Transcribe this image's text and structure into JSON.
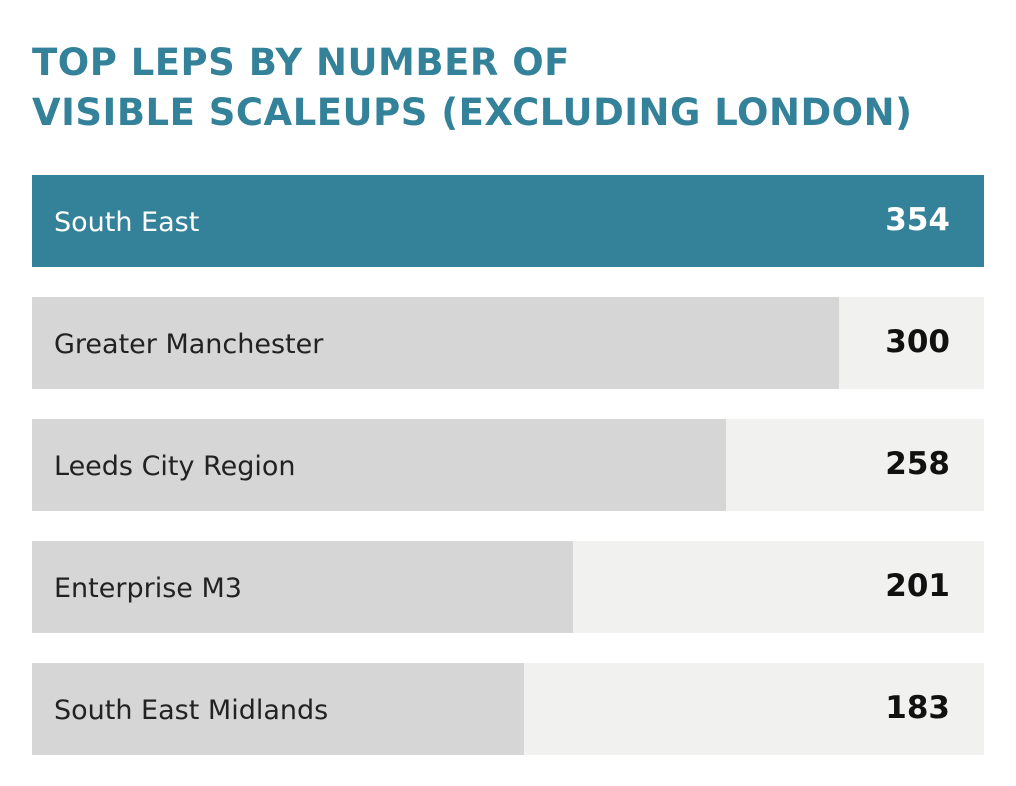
{
  "chart_data": {
    "type": "bar",
    "orientation": "horizontal",
    "title_lines": [
      "TOP LEPS BY NUMBER OF",
      "VISIBLE SCALEUPS (EXCLUDING LONDON)"
    ],
    "categories": [
      "South East",
      "Greater Manchester",
      "Leeds City Region",
      "Enterprise M3",
      "South East Midlands"
    ],
    "values": [
      354,
      300,
      258,
      201,
      183
    ],
    "grid": false,
    "legend": "none",
    "colors": {
      "title": "#34819a",
      "highlight_bar": "#34819a",
      "bar": "#d6d6d6",
      "track": "#f1f1f0",
      "label_on_highlight": "#ffffff",
      "label": "#222222"
    }
  }
}
